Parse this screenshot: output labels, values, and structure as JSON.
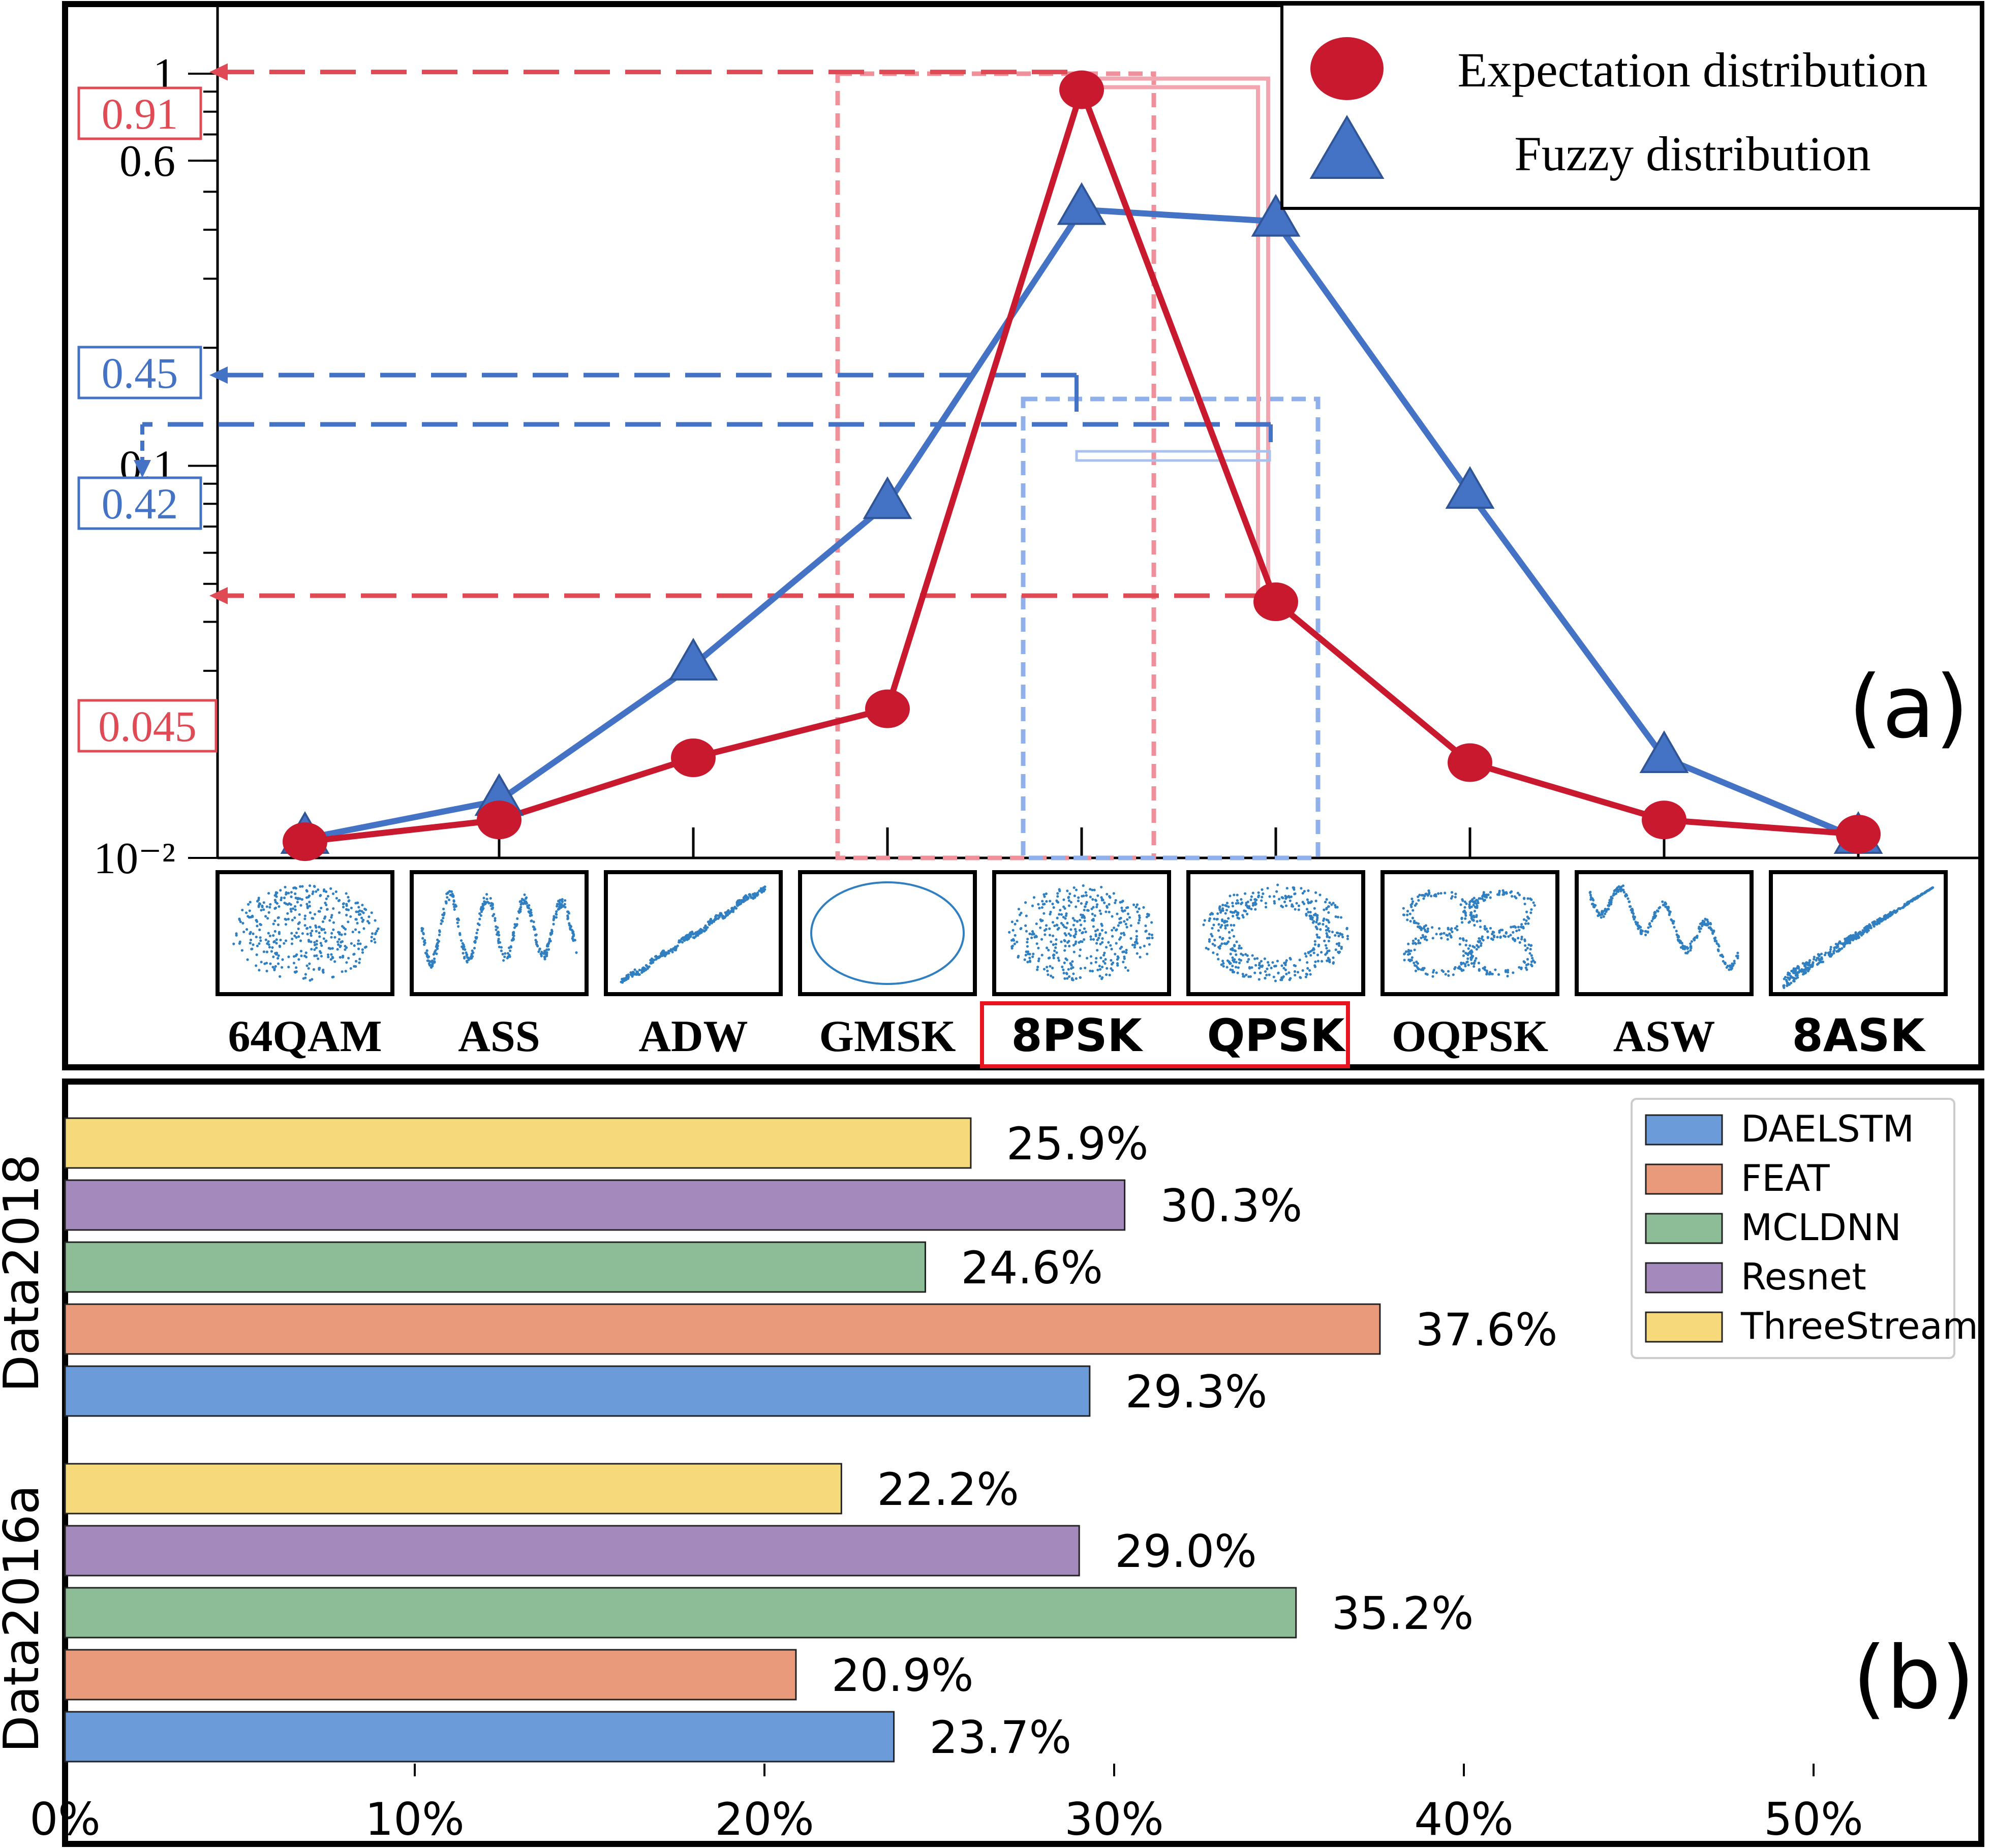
{
  "panel_a": {
    "panel_label": "(a)",
    "y_ticks": [
      "1",
      "0.6",
      "0.1",
      "10⁻²"
    ],
    "annotations": [
      {
        "text": "0.91",
        "color": "#e04a55"
      },
      {
        "text": "0.45",
        "color": "#4472c4"
      },
      {
        "text": "0.42",
        "color": "#4472c4"
      },
      {
        "text": "0.045",
        "color": "#e04a55"
      }
    ],
    "legend": [
      {
        "label": "Expectation distribution",
        "marker": "circle",
        "color": "#c8192f"
      },
      {
        "label": "Fuzzy distribution",
        "marker": "triangle",
        "color": "#4472c4"
      }
    ],
    "constellations": [
      {
        "label": "64QAM",
        "pattern": "cloud-scatter"
      },
      {
        "label": "ASS",
        "pattern": "zigzag-scatter"
      },
      {
        "label": "ADW",
        "pattern": "diagonal-lines"
      },
      {
        "label": "GMSK",
        "pattern": "circle"
      },
      {
        "label": "8PSK",
        "pattern": "cloud-scatter"
      },
      {
        "label": "QPSK",
        "pattern": "ring-scatter"
      },
      {
        "label": "OQPSK",
        "pattern": "four-lobe-scatter"
      },
      {
        "label": "ASW",
        "pattern": "zigzag-diagonal"
      },
      {
        "label": "8ASK",
        "pattern": "diagonal-band"
      }
    ],
    "highlighted_labels": [
      "8PSK",
      "QPSK"
    ],
    "highlight_color": "#e8141f"
  },
  "chart_data": [
    {
      "type": "line",
      "yscale": "log",
      "categories": [
        "64QAM",
        "ASS",
        "ADW",
        "GMSK",
        "8PSK",
        "QPSK",
        "OQPSK",
        "ASW",
        "8ASK"
      ],
      "ylim": [
        0.01,
        1
      ],
      "series": [
        {
          "name": "Expectation distribution",
          "color": "#c8192f",
          "marker": "circle",
          "values": [
            0.011,
            0.0125,
            0.018,
            0.024,
            0.91,
            0.045,
            0.0175,
            0.0125,
            0.0115
          ]
        },
        {
          "name": "Fuzzy distribution",
          "color": "#4472c4",
          "marker": "triangle",
          "values": [
            0.0112,
            0.014,
            0.031,
            0.08,
            0.45,
            0.42,
            0.085,
            0.018,
            0.0112
          ]
        }
      ]
    },
    {
      "type": "bar",
      "orientation": "horizontal",
      "panel_label": "(b)",
      "categories": [
        "Data2018",
        "Data2016a"
      ],
      "xlim": [
        0,
        55
      ],
      "x_ticks": [
        "0%",
        "10%",
        "20%",
        "30%",
        "40%",
        "50%"
      ],
      "legend_position": "top-right",
      "series": [
        {
          "name": "DAELSTM",
          "color": "#6b9bd8",
          "values": [
            29.3,
            23.7
          ],
          "labels": [
            "29.3%",
            "23.7%"
          ]
        },
        {
          "name": "FEAT",
          "color": "#e89a7a",
          "values": [
            37.6,
            20.9
          ],
          "labels": [
            "37.6%",
            "20.9%"
          ]
        },
        {
          "name": "MCLDNN",
          "color": "#8dbd96",
          "values": [
            24.6,
            35.2
          ],
          "labels": [
            "24.6%",
            "35.2%"
          ]
        },
        {
          "name": "Resnet",
          "color": "#a48abc",
          "values": [
            30.3,
            29.0
          ],
          "labels": [
            "30.3%",
            "29.0%"
          ]
        },
        {
          "name": "ThreeStream",
          "color": "#f6d97a",
          "values": [
            25.9,
            22.2
          ],
          "labels": [
            "25.9%",
            "22.2%"
          ]
        }
      ]
    }
  ]
}
